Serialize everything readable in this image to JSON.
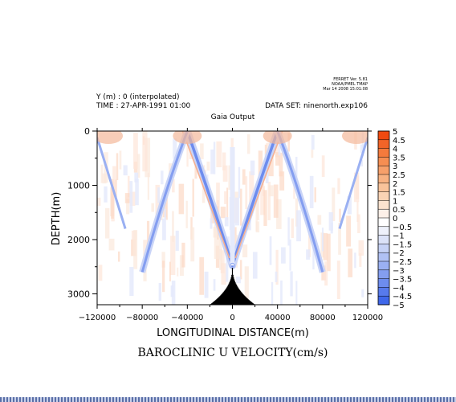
{
  "header": {
    "ferret_version": "FERRET Ver. 5.81",
    "ferret_host": "NOAA/PMEL TMAP",
    "ferret_date": "Mar 14 2008 15:01:08",
    "y_note": "Y (m) : 0 (interpolated)",
    "time_note": "TIME : 27-APR-1991 01:00",
    "dataset_note": "DATA SET: ninenorth.exp106",
    "subtitle": "Gaia Output"
  },
  "chart_data": {
    "type": "heatmap",
    "title": "BAROCLINIC U VELOCITY(cm/s)",
    "xlabel": "LONGITUDINAL DISTANCE(m)",
    "ylabel": "DEPTH(m)",
    "xlim": [
      -120000,
      120000
    ],
    "ylim": [
      3200,
      0
    ],
    "x_ticks": [
      -120000,
      -80000,
      -40000,
      0,
      40000,
      80000,
      120000
    ],
    "x_tick_labels": [
      "-120000",
      "-80000",
      "-40000",
      "0",
      "40000",
      "80000",
      "120000"
    ],
    "y_ticks": [
      0,
      1000,
      2000,
      3000
    ],
    "y_tick_labels": [
      "0",
      "1000",
      "2000",
      "3000"
    ],
    "ridge": {
      "peak_depth": 2520,
      "base_depth": 3200,
      "half_width": 20000
    },
    "beam_source": {
      "x": 0,
      "depth": 2480
    },
    "beam_surface_crossings_x": [
      -40000,
      40000
    ],
    "colorbar": {
      "levels": [
        "5",
        "4.5",
        "4",
        "3.5",
        "3",
        "2.5",
        "2",
        "1.5",
        "1",
        "0.5",
        "0",
        "-0.5",
        "-1",
        "-1.5",
        "-2",
        "-2.5",
        "-3",
        "-3.5",
        "-4",
        "-4.5",
        "-5"
      ],
      "colors": [
        "#f04a10",
        "#f26428",
        "#f47a3c",
        "#f68e52",
        "#f7a06a",
        "#f8b282",
        "#f9c39a",
        "#fad3b4",
        "#fbe2cf",
        "#fdf0e8",
        "#ffffff",
        "#eef1fb",
        "#dbe2f8",
        "#c6d2f6",
        "#b0c1f4",
        "#9ab0f2",
        "#849ef0",
        "#6d8cee",
        "#577aec",
        "#3f67ea",
        "#2454e8"
      ]
    }
  }
}
